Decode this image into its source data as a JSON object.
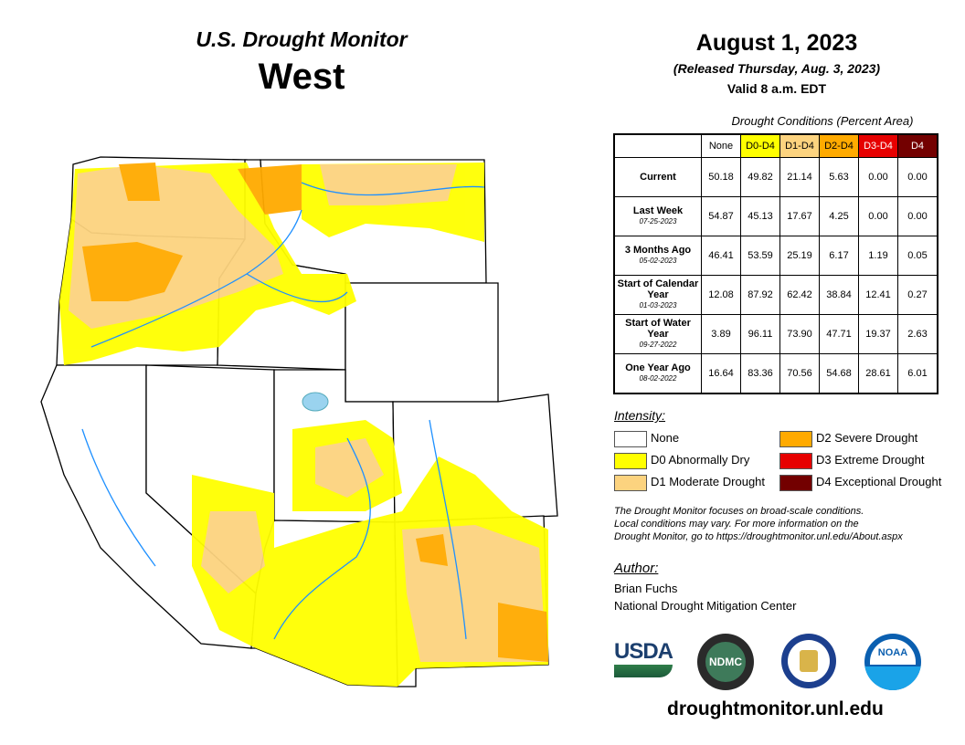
{
  "header": {
    "title": "U.S. Drought Monitor",
    "region": "West",
    "date": "August 1, 2023",
    "released": "(Released Thursday, Aug. 3, 2023)",
    "valid": "Valid 8 a.m. EDT"
  },
  "table": {
    "caption": "Drought Conditions (Percent Area)",
    "columns": [
      {
        "label": "None",
        "color": "#ffffff",
        "text": "#000000"
      },
      {
        "label": "D0-D4",
        "color": "#ffff00",
        "text": "#000000"
      },
      {
        "label": "D1-D4",
        "color": "#fcd37f",
        "text": "#000000"
      },
      {
        "label": "D2-D4",
        "color": "#ffaa00",
        "text": "#000000"
      },
      {
        "label": "D3-D4",
        "color": "#e60000",
        "text": "#ffffff"
      },
      {
        "label": "D4",
        "color": "#730000",
        "text": "#ffffff"
      }
    ],
    "rows": [
      {
        "label": "Current",
        "date": "",
        "values": [
          "50.18",
          "49.82",
          "21.14",
          "5.63",
          "0.00",
          "0.00"
        ]
      },
      {
        "label": "Last Week",
        "date": "07-25-2023",
        "values": [
          "54.87",
          "45.13",
          "17.67",
          "4.25",
          "0.00",
          "0.00"
        ]
      },
      {
        "label": "3 Months Ago",
        "date": "05-02-2023",
        "values": [
          "46.41",
          "53.59",
          "25.19",
          "6.17",
          "1.19",
          "0.05"
        ]
      },
      {
        "label": "Start of Calendar Year",
        "date": "01-03-2023",
        "values": [
          "12.08",
          "87.92",
          "62.42",
          "38.84",
          "12.41",
          "0.27"
        ]
      },
      {
        "label": "Start of Water Year",
        "date": "09-27-2022",
        "values": [
          "3.89",
          "96.11",
          "73.90",
          "47.71",
          "19.37",
          "2.63"
        ]
      },
      {
        "label": "One Year Ago",
        "date": "08-02-2022",
        "values": [
          "16.64",
          "83.36",
          "70.56",
          "54.68",
          "28.61",
          "6.01"
        ]
      }
    ]
  },
  "legend": {
    "title": "Intensity:",
    "items": [
      {
        "label": "None",
        "color": "#ffffff"
      },
      {
        "label": "D0 Abnormally Dry",
        "color": "#ffff00"
      },
      {
        "label": "D1 Moderate Drought",
        "color": "#fcd37f"
      },
      {
        "label": "D2 Severe Drought",
        "color": "#ffaa00"
      },
      {
        "label": "D3 Extreme Drought",
        "color": "#e60000"
      },
      {
        "label": "D4 Exceptional Drought",
        "color": "#730000"
      }
    ]
  },
  "note": [
    "The Drought Monitor focuses on broad-scale conditions.",
    "Local conditions may vary. For more information on the",
    "Drought Monitor, go to https://droughtmonitor.unl.edu/About.aspx"
  ],
  "author": {
    "title": "Author:",
    "name": "Brian Fuchs",
    "org": "National Drought Mitigation Center"
  },
  "logos": {
    "usda": "USDA",
    "ndmc": "NDMC",
    "noaa": "NOAA"
  },
  "url": "droughtmonitor.unl.edu"
}
